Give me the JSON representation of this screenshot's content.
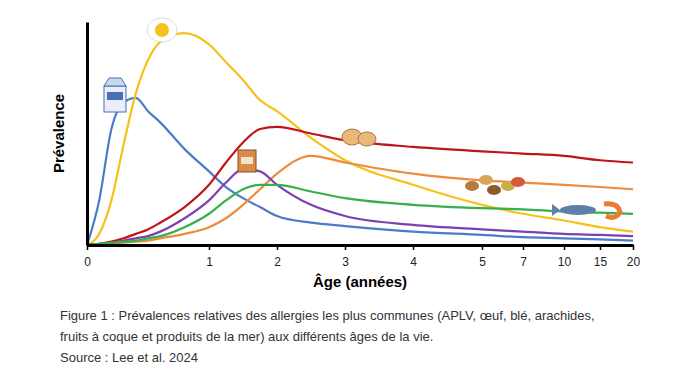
{
  "chart_data": {
    "type": "line",
    "x_label": "Âge (années)",
    "y_label": "Prévalence",
    "caption": [
      "Figure 1 : Prévalences relatives des allergies les plus communes (APLV, œuf, blé, arachides,",
      "fruits à coque et produits de la mer) aux différents âges de la vie."
    ],
    "source": "Source : Lee et al. 2024",
    "x": [
      0,
      0.1,
      0.2,
      0.3,
      0.4,
      0.5,
      0.6,
      0.8,
      1,
      1.25,
      1.5,
      1.75,
      2,
      2.5,
      3,
      4,
      5,
      7,
      10,
      15,
      20
    ],
    "series": [
      {
        "color": "#4a7cc9",
        "values": [
          0,
          20,
          52,
          64,
          66,
          60,
          55,
          43,
          33,
          26,
          21,
          17,
          13,
          10,
          8.5,
          6,
          4.5,
          3.5,
          3,
          2.5,
          2
        ]
      },
      {
        "color": "#f5c21b",
        "values": [
          0,
          5,
          20,
          45,
          68,
          83,
          91,
          95,
          90,
          82,
          74,
          65,
          60,
          48,
          38,
          27,
          18,
          14,
          11,
          8,
          6
        ]
      },
      {
        "color": "#c0141c",
        "values": [
          0,
          0.5,
          1.5,
          3,
          5,
          7,
          10,
          17,
          27,
          37,
          46,
          52,
          53,
          50,
          47,
          44,
          42,
          41,
          40,
          38,
          37
        ]
      },
      {
        "color": "#ee8a3c",
        "values": [
          0,
          0,
          0.5,
          1,
          1.5,
          2,
          3,
          5,
          8,
          12,
          18,
          25,
          32,
          40,
          37,
          32,
          29,
          28,
          27,
          26,
          25
        ]
      },
      {
        "color": "#7d3fb3",
        "values": [
          0,
          0.5,
          1,
          2,
          3,
          4,
          6,
          12,
          20,
          28,
          34,
          33,
          27,
          18,
          13,
          9,
          7,
          6,
          5,
          4.5,
          4
        ]
      },
      {
        "color": "#35b04a",
        "values": [
          0,
          0.5,
          1,
          1.5,
          2,
          3,
          4,
          8,
          14,
          20,
          25,
          27,
          27,
          24,
          21,
          18,
          16.5,
          16,
          15,
          14.5,
          14
        ]
      }
    ],
    "xlim": [
      0,
      20
    ],
    "xticks": [
      0,
      1,
      2,
      3,
      4,
      5,
      7,
      10,
      15,
      20
    ],
    "ylim": [
      0,
      100
    ],
    "yticks": [],
    "tick_labels": "x",
    "grid": false
  }
}
